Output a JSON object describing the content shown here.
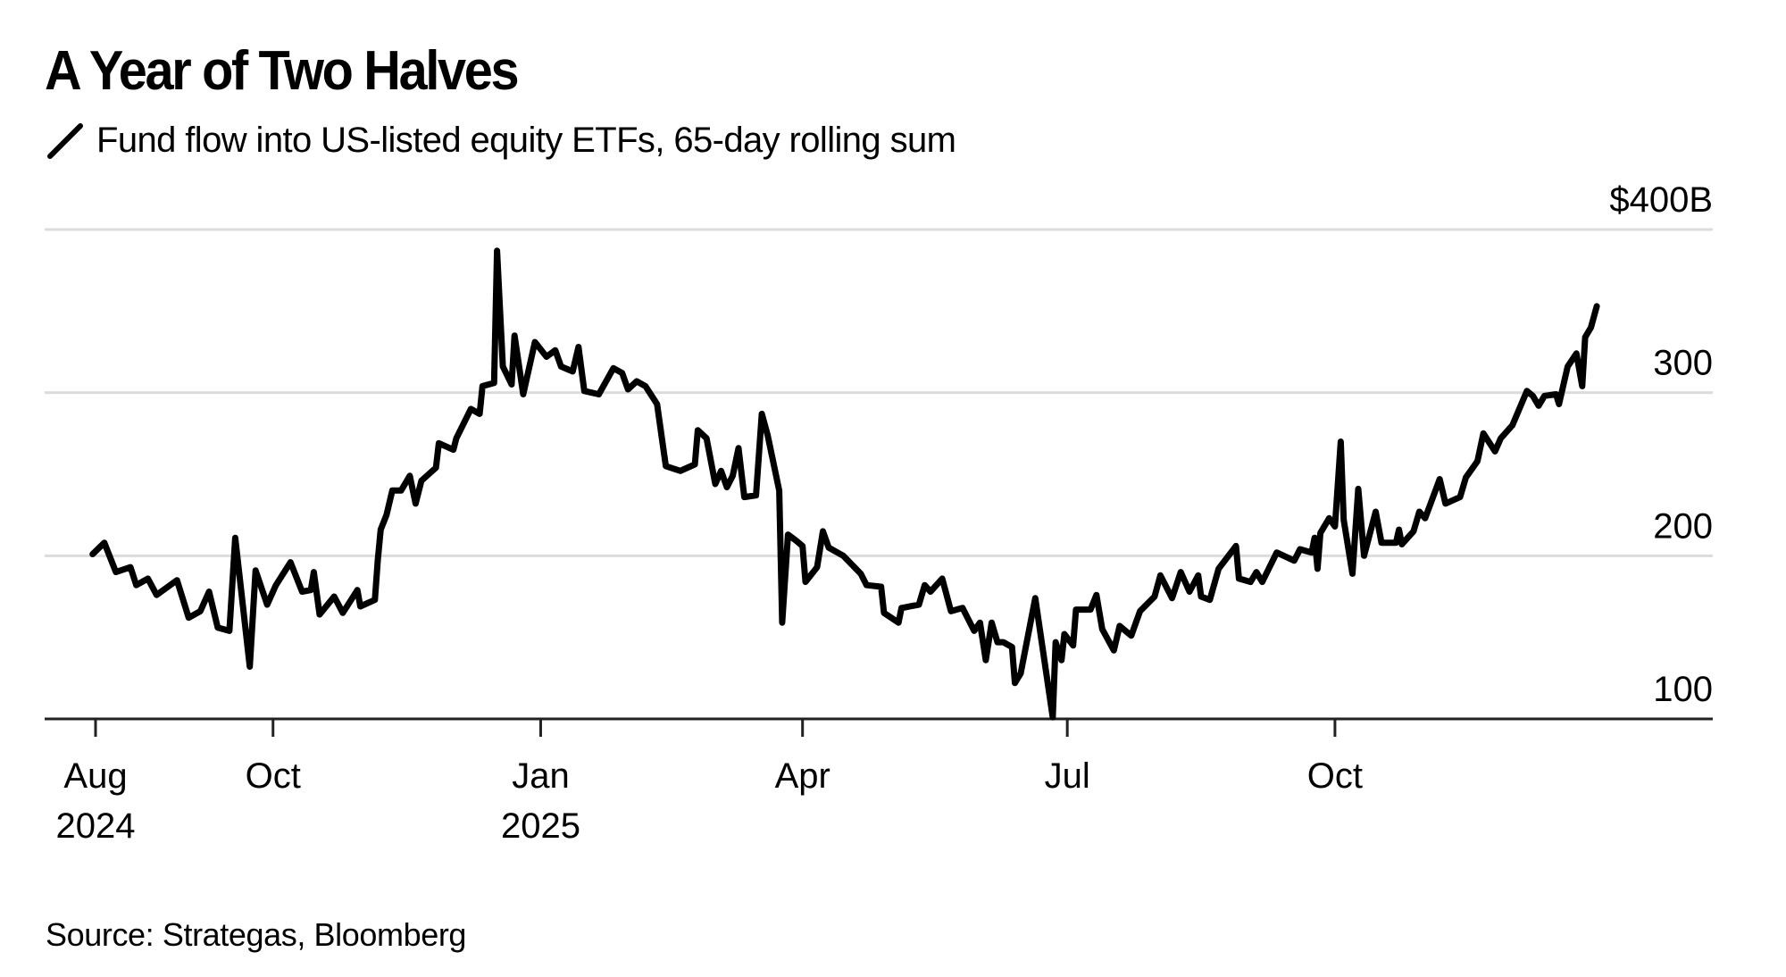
{
  "chart_data": {
    "type": "line",
    "title": "A Year of Two Halves",
    "legend": [
      {
        "name": "Fund flow into US-listed equity ETFs, 65-day rolling sum",
        "color": "#000000"
      }
    ],
    "legend_placement": "top-left",
    "source": "Source: Strategas, Bloomberg",
    "xlabel": "",
    "ylabel": "",
    "yunit": "$B",
    "ylim": [
      100,
      400
    ],
    "yticks": [
      {
        "value": 400,
        "label": "$400B"
      },
      {
        "value": 300,
        "label": "300"
      },
      {
        "value": 200,
        "label": "200"
      },
      {
        "value": 100,
        "label": "100"
      }
    ],
    "xlim": [
      "2024-07-25",
      "2025-12-31"
    ],
    "xticks": [
      {
        "date": "2024-08-01",
        "label": "Aug",
        "sublabel": "2024"
      },
      {
        "date": "2024-10-01",
        "label": "Oct",
        "sublabel": ""
      },
      {
        "date": "2025-01-01",
        "label": "Jan",
        "sublabel": "2025"
      },
      {
        "date": "2025-04-01",
        "label": "Apr",
        "sublabel": ""
      },
      {
        "date": "2025-07-01",
        "label": "Jul",
        "sublabel": ""
      },
      {
        "date": "2025-10-01",
        "label": "Oct",
        "sublabel": ""
      }
    ],
    "grid": true,
    "series": [
      {
        "name": "Fund flow into US-listed equity ETFs, 65-day rolling sum",
        "color": "#000000",
        "points": [
          [
            "2024-07-31",
            201
          ],
          [
            "2024-08-04",
            208
          ],
          [
            "2024-08-08",
            190
          ],
          [
            "2024-08-13",
            193
          ],
          [
            "2024-08-15",
            182
          ],
          [
            "2024-08-19",
            186
          ],
          [
            "2024-08-22",
            176
          ],
          [
            "2024-08-29",
            185
          ],
          [
            "2024-09-02",
            162
          ],
          [
            "2024-09-06",
            166
          ],
          [
            "2024-09-09",
            178
          ],
          [
            "2024-09-12",
            156
          ],
          [
            "2024-09-16",
            154
          ],
          [
            "2024-09-18",
            211
          ],
          [
            "2024-09-23",
            132
          ],
          [
            "2024-09-25",
            191
          ],
          [
            "2024-09-29",
            170
          ],
          [
            "2024-10-02",
            182
          ],
          [
            "2024-10-07",
            196
          ],
          [
            "2024-10-11",
            178
          ],
          [
            "2024-10-14",
            179
          ],
          [
            "2024-10-15",
            190
          ],
          [
            "2024-10-17",
            164
          ],
          [
            "2024-10-22",
            175
          ],
          [
            "2024-10-25",
            165
          ],
          [
            "2024-10-30",
            179
          ],
          [
            "2024-10-31",
            169
          ],
          [
            "2024-11-05",
            173
          ],
          [
            "2024-11-06",
            197
          ],
          [
            "2024-11-07",
            216
          ],
          [
            "2024-11-09",
            225
          ],
          [
            "2024-11-11",
            240
          ],
          [
            "2024-11-14",
            240
          ],
          [
            "2024-11-17",
            249
          ],
          [
            "2024-11-19",
            232
          ],
          [
            "2024-11-21",
            246
          ],
          [
            "2024-11-26",
            254
          ],
          [
            "2024-11-27",
            269
          ],
          [
            "2024-12-02",
            265
          ],
          [
            "2024-12-03",
            272
          ],
          [
            "2024-12-08",
            290
          ],
          [
            "2024-12-11",
            287
          ],
          [
            "2024-12-12",
            304
          ],
          [
            "2024-12-16",
            306
          ],
          [
            "2024-12-17",
            387
          ],
          [
            "2024-12-19",
            316
          ],
          [
            "2024-12-22",
            305
          ],
          [
            "2024-12-23",
            335
          ],
          [
            "2024-12-26",
            299
          ],
          [
            "2024-12-30",
            331
          ],
          [
            "2025-01-03",
            322
          ],
          [
            "2025-01-06",
            326
          ],
          [
            "2025-01-08",
            316
          ],
          [
            "2025-01-12",
            313
          ],
          [
            "2025-01-14",
            328
          ],
          [
            "2025-01-16",
            301
          ],
          [
            "2025-01-21",
            299
          ],
          [
            "2025-01-26",
            315
          ],
          [
            "2025-01-29",
            312
          ],
          [
            "2025-01-31",
            302
          ],
          [
            "2025-02-03",
            307
          ],
          [
            "2025-02-06",
            304
          ],
          [
            "2025-02-10",
            293
          ],
          [
            "2025-02-13",
            255
          ],
          [
            "2025-02-18",
            252
          ],
          [
            "2025-02-23",
            256
          ],
          [
            "2025-02-24",
            277
          ],
          [
            "2025-02-27",
            272
          ],
          [
            "2025-03-02",
            244
          ],
          [
            "2025-03-04",
            252
          ],
          [
            "2025-03-06",
            242
          ],
          [
            "2025-03-08",
            249
          ],
          [
            "2025-03-10",
            266
          ],
          [
            "2025-03-12",
            236
          ],
          [
            "2025-03-16",
            237
          ],
          [
            "2025-03-18",
            287
          ],
          [
            "2025-03-20",
            274
          ],
          [
            "2025-03-24",
            240
          ],
          [
            "2025-03-25",
            159
          ],
          [
            "2025-03-27",
            213
          ],
          [
            "2025-03-30",
            209
          ],
          [
            "2025-04-01",
            206
          ],
          [
            "2025-04-02",
            184
          ],
          [
            "2025-04-06",
            193
          ],
          [
            "2025-04-08",
            215
          ],
          [
            "2025-04-10",
            205
          ],
          [
            "2025-04-15",
            200
          ],
          [
            "2025-04-21",
            189
          ],
          [
            "2025-04-23",
            182
          ],
          [
            "2025-04-28",
            181
          ],
          [
            "2025-04-29",
            165
          ],
          [
            "2025-05-04",
            159
          ],
          [
            "2025-05-05",
            168
          ],
          [
            "2025-05-11",
            170
          ],
          [
            "2025-05-13",
            182
          ],
          [
            "2025-05-15",
            178
          ],
          [
            "2025-05-19",
            186
          ],
          [
            "2025-05-22",
            166
          ],
          [
            "2025-05-26",
            168
          ],
          [
            "2025-05-30",
            154
          ],
          [
            "2025-06-01",
            159
          ],
          [
            "2025-06-03",
            136
          ],
          [
            "2025-06-05",
            159
          ],
          [
            "2025-06-07",
            147
          ],
          [
            "2025-06-09",
            147
          ],
          [
            "2025-06-12",
            144
          ],
          [
            "2025-06-13",
            122
          ],
          [
            "2025-06-15",
            128
          ],
          [
            "2025-06-20",
            174
          ],
          [
            "2025-06-26",
            101
          ],
          [
            "2025-06-27",
            147
          ],
          [
            "2025-06-29",
            136
          ],
          [
            "2025-06-30",
            152
          ],
          [
            "2025-07-03",
            145
          ],
          [
            "2025-07-04",
            167
          ],
          [
            "2025-07-09",
            167
          ],
          [
            "2025-07-11",
            176
          ],
          [
            "2025-07-13",
            155
          ],
          [
            "2025-07-17",
            142
          ],
          [
            "2025-07-19",
            157
          ],
          [
            "2025-07-23",
            151
          ],
          [
            "2025-07-26",
            166
          ],
          [
            "2025-07-31",
            175
          ],
          [
            "2025-08-02",
            188
          ],
          [
            "2025-08-06",
            174
          ],
          [
            "2025-08-09",
            190
          ],
          [
            "2025-08-12",
            178
          ],
          [
            "2025-08-15",
            188
          ],
          [
            "2025-08-16",
            175
          ],
          [
            "2025-08-19",
            173
          ],
          [
            "2025-08-22",
            192
          ],
          [
            "2025-08-28",
            206
          ],
          [
            "2025-08-29",
            186
          ],
          [
            "2025-09-02",
            184
          ],
          [
            "2025-09-04",
            190
          ],
          [
            "2025-09-06",
            184
          ],
          [
            "2025-09-11",
            202
          ],
          [
            "2025-09-17",
            197
          ],
          [
            "2025-09-19",
            204
          ],
          [
            "2025-09-23",
            202
          ],
          [
            "2025-09-24",
            211
          ],
          [
            "2025-09-25",
            192
          ],
          [
            "2025-09-26",
            214
          ],
          [
            "2025-09-29",
            223
          ],
          [
            "2025-10-01",
            218
          ],
          [
            "2025-10-03",
            270
          ],
          [
            "2025-10-04",
            222
          ],
          [
            "2025-10-07",
            189
          ],
          [
            "2025-10-09",
            241
          ],
          [
            "2025-10-11",
            200
          ],
          [
            "2025-10-15",
            227
          ],
          [
            "2025-10-17",
            208
          ],
          [
            "2025-10-22",
            208
          ],
          [
            "2025-10-23",
            216
          ],
          [
            "2025-10-24",
            207
          ],
          [
            "2025-10-28",
            215
          ],
          [
            "2025-10-30",
            227
          ],
          [
            "2025-11-01",
            223
          ],
          [
            "2025-11-06",
            247
          ],
          [
            "2025-11-08",
            232
          ],
          [
            "2025-11-13",
            236
          ],
          [
            "2025-11-15",
            248
          ],
          [
            "2025-11-19",
            258
          ],
          [
            "2025-11-21",
            275
          ],
          [
            "2025-11-25",
            264
          ],
          [
            "2025-11-27",
            272
          ],
          [
            "2025-12-01",
            280
          ],
          [
            "2025-12-06",
            301
          ],
          [
            "2025-12-08",
            298
          ],
          [
            "2025-12-10",
            292
          ],
          [
            "2025-12-12",
            298
          ],
          [
            "2025-12-16",
            299
          ],
          [
            "2025-12-17",
            293
          ],
          [
            "2025-12-20",
            316
          ],
          [
            "2025-12-23",
            324
          ],
          [
            "2025-12-25",
            304
          ],
          [
            "2025-12-26",
            334
          ],
          [
            "2025-12-28",
            340
          ],
          [
            "2025-12-30",
            353
          ]
        ]
      }
    ]
  }
}
